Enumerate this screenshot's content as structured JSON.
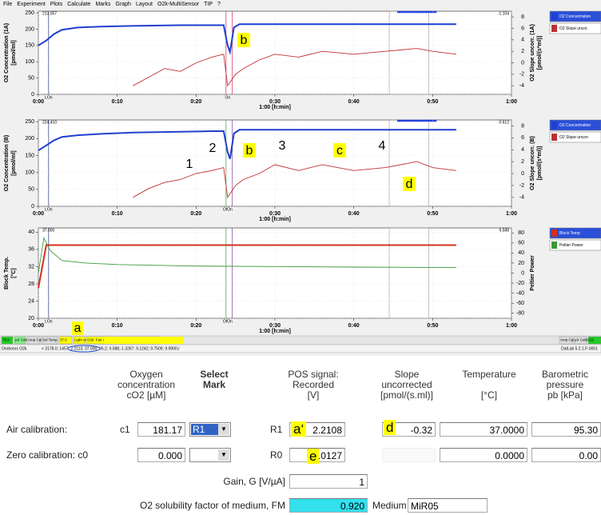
{
  "menu": [
    "File",
    "Experiment",
    "Plots",
    "Calculate",
    "Marks",
    "Graph",
    "Layout",
    "O2k-MultiSensor",
    "TIP",
    "?"
  ],
  "panels": [
    {
      "ylabel": "O2 Concentration (1A)",
      "yunit": "[pmol/ml]",
      "y2label": "O2 Slope uncorr. (1A)",
      "y2unit": "[pmol/(s*ml)]",
      "ylim": [
        0,
        255
      ],
      "yticks": [
        0,
        50,
        100,
        150,
        200,
        250
      ],
      "y2lim": [
        -5.5,
        9
      ],
      "y2ticks": [
        -4,
        -2,
        0,
        2,
        4,
        6,
        8
      ],
      "xlim": [
        0,
        60
      ],
      "xticks": [
        {
          "value": 0,
          "label": "0:00"
        },
        {
          "value": 10,
          "label": "0:10"
        },
        {
          "value": 20,
          "label": "0:20"
        },
        {
          "value": 30,
          "label": "0:30"
        },
        {
          "value": 40,
          "label": "0:40"
        },
        {
          "value": 50,
          "label": "0:50"
        },
        {
          "value": 60,
          "label": "1:00"
        }
      ],
      "xlabel": "1:00 [h:min]",
      "corner_left": "213.057",
      "corner_right": "-1.104",
      "marks": [
        "LOn",
        "On"
      ],
      "annotations": [
        "b"
      ],
      "series": [
        {
          "name": "O2 Concentration",
          "color": "#1f3fd0",
          "axis": "y",
          "x": [
            0,
            1,
            2,
            3,
            5,
            8,
            12,
            18,
            22,
            23.5,
            24,
            24.3,
            24.8,
            25.5,
            30,
            40,
            53
          ],
          "values": [
            150,
            165,
            185,
            198,
            205,
            208,
            210,
            212,
            212,
            212,
            150,
            130,
            205,
            215,
            215,
            215,
            215
          ]
        },
        {
          "name": "O2 Slope uncor.",
          "color": "#c03030",
          "axis": "y2",
          "x": [
            12,
            14,
            16,
            18,
            20,
            22,
            23.5,
            24,
            25,
            26,
            28,
            30,
            33,
            36,
            40,
            44,
            48,
            50,
            53
          ],
          "values": [
            -4,
            -2.5,
            -1,
            -1.5,
            0,
            1,
            1.5,
            -4,
            -2,
            -1,
            0.5,
            1.5,
            1,
            2,
            1.5,
            2,
            2.5,
            2,
            1.5
          ]
        }
      ]
    },
    {
      "ylabel": "O2 Concentration (B)",
      "yunit": "[pmol/ml]",
      "y2label": "O2 Slope uncorr. (B)",
      "y2unit": "[pmol/(s*ml)]",
      "ylim": [
        0,
        255
      ],
      "yticks": [
        0,
        50,
        100,
        150,
        200,
        250
      ],
      "y2lim": [
        -5.5,
        9
      ],
      "y2ticks": [
        -4,
        -2,
        0,
        2,
        4,
        6,
        8
      ],
      "xlim": [
        0,
        60
      ],
      "xticks": [
        {
          "value": 0,
          "label": "0:00"
        },
        {
          "value": 10,
          "label": "0:10"
        },
        {
          "value": 20,
          "label": "0:20"
        },
        {
          "value": 30,
          "label": "0:30"
        },
        {
          "value": 40,
          "label": "0:40"
        },
        {
          "value": 50,
          "label": "0:50"
        },
        {
          "value": 60,
          "label": "1:00"
        }
      ],
      "xlabel": "1:00 [h:min]",
      "corner_left": "224.410",
      "corner_right": "0.612",
      "marks": [
        "LOn",
        "OfOn"
      ],
      "annotations": [
        "1",
        "2",
        "b",
        "3",
        "c",
        "4",
        "d"
      ],
      "series": [
        {
          "name": "O2 Concentration",
          "color": "#1f3fd0",
          "axis": "y",
          "x": [
            0,
            1,
            2,
            3,
            5,
            8,
            12,
            18,
            22,
            23.5,
            24,
            24.3,
            24.8,
            25.5,
            30,
            40,
            53
          ],
          "values": [
            165,
            180,
            195,
            205,
            210,
            214,
            218,
            220,
            222,
            222,
            160,
            140,
            215,
            226,
            226,
            226,
            226
          ]
        },
        {
          "name": "O2 Slope uncon",
          "color": "#c03030",
          "axis": "y2",
          "x": [
            12,
            14,
            16,
            18,
            20,
            22,
            23.5,
            24,
            25,
            26,
            28,
            30,
            33,
            36,
            40,
            44,
            48,
            50,
            53
          ],
          "values": [
            -4,
            -2.5,
            -1.5,
            -1,
            0,
            0.5,
            1,
            -4,
            -2,
            -1,
            0,
            1.5,
            0.5,
            1.5,
            0.5,
            1,
            2,
            1,
            0.5
          ]
        }
      ]
    },
    {
      "ylabel": "Block Temp.",
      "yunit": "[°C]",
      "y2label": "Peltier Power",
      "y2unit": "",
      "ylim": [
        20,
        41
      ],
      "yticks": [
        20,
        24,
        28,
        32,
        36,
        40
      ],
      "y2lim": [
        -90,
        90
      ],
      "y2ticks": [
        -80,
        -60,
        -40,
        -20,
        0,
        20,
        40,
        60,
        80
      ],
      "xlim": [
        0,
        60
      ],
      "xticks": [
        {
          "value": 0,
          "label": "0:00"
        },
        {
          "value": 10,
          "label": "0:10"
        },
        {
          "value": 20,
          "label": "0:20"
        },
        {
          "value": 30,
          "label": "0:30"
        },
        {
          "value": 40,
          "label": "0:40"
        },
        {
          "value": 50,
          "label": "0:50"
        },
        {
          "value": 60,
          "label": "1:00"
        }
      ],
      "xlabel": "1:00 [h:min]",
      "corner_left": "37.000",
      "corner_right": "9.588",
      "marks": [
        "LOn",
        "OfOn"
      ],
      "annotations": [],
      "series": [
        {
          "name": "Block Temp",
          "color": "#d03020",
          "axis": "y",
          "x": [
            0,
            0.5,
            1,
            2,
            53
          ],
          "values": [
            27,
            32,
            37,
            37,
            37
          ]
        },
        {
          "name": "Peltier Power",
          "color": "#3a9a3a",
          "axis": "y2",
          "x": [
            0,
            0.7,
            1.5,
            3,
            6,
            10,
            20,
            30,
            40,
            53
          ],
          "values": [
            0,
            70,
            45,
            25,
            20,
            17,
            14,
            13,
            12,
            11
          ]
        }
      ]
    }
  ],
  "status": {
    "left": [
      "75.8",
      "pX Calib",
      "Amp Calib",
      "Sel Temp",
      "37.0",
      "Light on",
      "O2k: Fan off",
      "TIP Ready"
    ],
    "right": [
      "Amp Calib",
      "pX Calib",
      "O2"
    ],
    "app": "Oroboros O2k",
    "info": "< 3178.0; 1457; 2.2113; 37.000; 95.2; 0.588;-1.3267; 9.1242; 9.7509; 9.9900;/",
    "version": "DatLab 5.2.1.F-0001",
    "annotation": "a"
  },
  "form": {
    "headers": [
      "Oxygen\nconcentration\ncO2 [µM]",
      "Select\nMark",
      "POS signal:\nRecorded\n[V]",
      "Slope\nuncorrected\n[pmol/(s.ml)]",
      "Temperature\n\n[°C]",
      "Barometric\npressure\npb [kPa]"
    ],
    "air": {
      "label": "Air calibration:",
      "sym": "c1",
      "conc": "181.17",
      "mark": "R1",
      "mark2": "R1",
      "signal": "2.2108",
      "slope": "-0.32",
      "temp": "37.0000",
      "pb": "95.30"
    },
    "zero": {
      "label": "Zero calibration: c0",
      "conc": "0.000",
      "mark2": "R0",
      "signal": "0.0127",
      "temp": "0.0000",
      "pb": "0.00"
    },
    "gain": {
      "label": "Gain, G [V/µA]",
      "value": "1"
    },
    "solubility": {
      "label": "O2 solubility factor of medium, FM",
      "value": "0.920",
      "medium_label": "Medium",
      "medium": "MiR05"
    },
    "annotations": [
      "a‘",
      "d",
      "e"
    ]
  }
}
